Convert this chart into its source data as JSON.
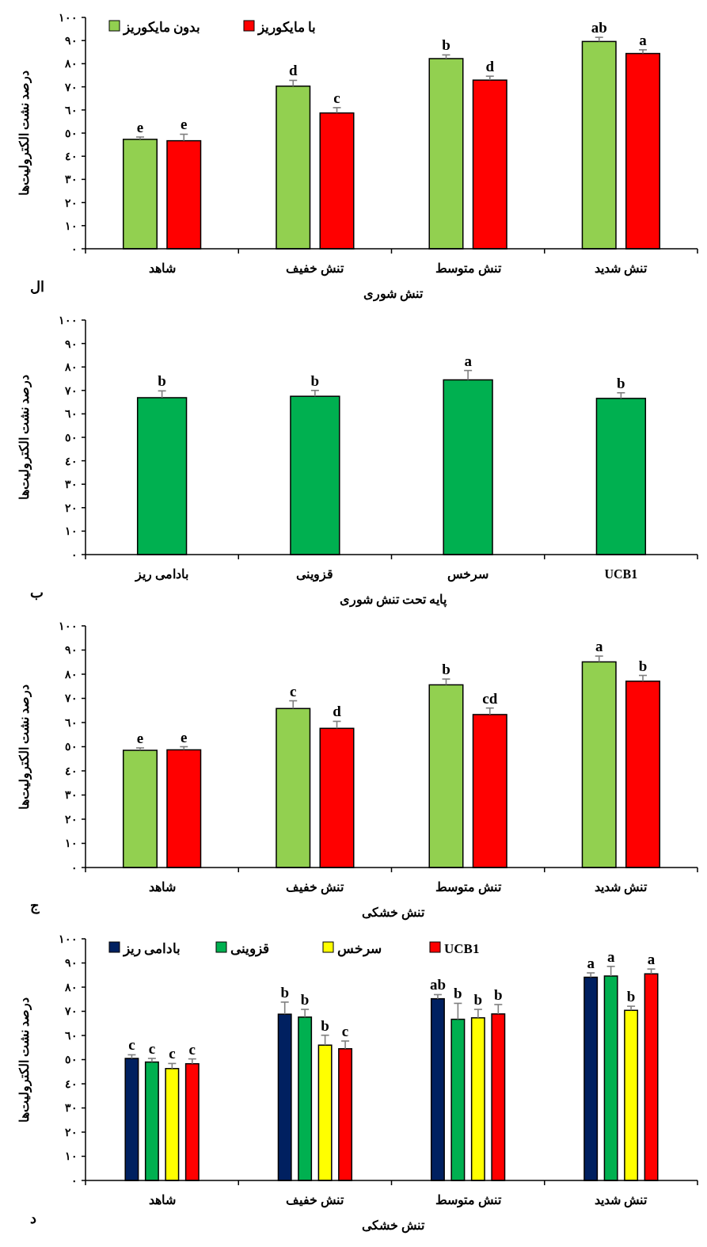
{
  "chart_data": [
    {
      "type": "bar",
      "xlabel": "تنش شوری",
      "ylabel": "درصد نشت الکترولیت‌ها",
      "annotations": [
        "ال"
      ],
      "categories": [
        "شاهد",
        "تنش خفیف",
        "تنش متوسط",
        "تنش شدید"
      ],
      "ylim": [
        0,
        100
      ],
      "yticks": [
        {
          "value": 0,
          "label": "٠"
        },
        {
          "value": 10,
          "label": "١٠"
        },
        {
          "value": 20,
          "label": "٢٠"
        },
        {
          "value": 30,
          "label": "٣٠"
        },
        {
          "value": 40,
          "label": "٤٠"
        },
        {
          "value": 50,
          "label": "٥٠"
        },
        {
          "value": 60,
          "label": "٦٠"
        },
        {
          "value": 70,
          "label": "٧٠"
        },
        {
          "value": 80,
          "label": "٨٠"
        },
        {
          "value": 90,
          "label": "٩٠"
        },
        {
          "value": 100,
          "label": "١٠٠"
        }
      ],
      "legend": "top left",
      "grid": false,
      "series": [
        {
          "name": "بدون مایکوریز",
          "color": "#92d050",
          "values": [
            47.3,
            70.3,
            82.2,
            89.6
          ],
          "errors": [
            [
              47.3,
              48.3
            ],
            [
              70.3,
              72.8
            ],
            [
              82.2,
              83.8
            ],
            [
              89.6,
              91.4
            ]
          ],
          "value_labels": [
            "e",
            "d",
            "b",
            "ab"
          ]
        },
        {
          "name": "با مایکوریز",
          "color": "#ff0000",
          "values": [
            46.7,
            58.7,
            72.9,
            84.4
          ],
          "errors": [
            [
              46.7,
              49.5
            ],
            [
              58.7,
              61.0
            ],
            [
              72.9,
              74.6
            ],
            [
              84.4,
              86.0
            ]
          ],
          "value_labels": [
            "e",
            "c",
            "d",
            "a"
          ]
        }
      ]
    },
    {
      "type": "bar",
      "xlabel": "پایه تحت تنش شوری",
      "ylabel": "درصد نشت الکترولیت‌ها",
      "annotations": [
        "ب"
      ],
      "categories": [
        "بادامی ریز",
        "قزوینی",
        "سرخس",
        "UCB1"
      ],
      "ylim": [
        0,
        100
      ],
      "yticks": [
        {
          "value": 0,
          "label": "٠"
        },
        {
          "value": 10,
          "label": "١٠"
        },
        {
          "value": 20,
          "label": "٢٠"
        },
        {
          "value": 30,
          "label": "٣٠"
        },
        {
          "value": 40,
          "label": "٤٠"
        },
        {
          "value": 50,
          "label": "٥٠"
        },
        {
          "value": 60,
          "label": "٦٠"
        },
        {
          "value": 70,
          "label": "٧٠"
        },
        {
          "value": 80,
          "label": "٨٠"
        },
        {
          "value": 90,
          "label": "٩٠"
        },
        {
          "value": 100,
          "label": "١٠٠"
        }
      ],
      "grid": false,
      "series": [
        {
          "color": "#00b050",
          "values": [
            66.9,
            67.5,
            74.5,
            66.6
          ],
          "errors": [
            [
              66.9,
              69.8
            ],
            [
              67.5,
              70.0
            ],
            [
              74.5,
              78.5
            ],
            [
              66.6,
              69.0
            ]
          ],
          "value_labels": [
            "b",
            "b",
            "a",
            "b"
          ]
        }
      ]
    },
    {
      "type": "bar",
      "xlabel": "تنش خشکی",
      "ylabel": "درصد نشت الکترولیت‌ها",
      "annotations": [
        "ج"
      ],
      "categories": [
        "شاهد",
        "تنش خفیف",
        "تنش متوسط",
        "تنش شدید"
      ],
      "ylim": [
        0,
        100
      ],
      "yticks": [
        {
          "value": 0,
          "label": "٠"
        },
        {
          "value": 10,
          "label": "١٠"
        },
        {
          "value": 20,
          "label": "٢٠"
        },
        {
          "value": 30,
          "label": "٣٠"
        },
        {
          "value": 40,
          "label": "٤٠"
        },
        {
          "value": 50,
          "label": "٥٠"
        },
        {
          "value": 60,
          "label": "٦٠"
        },
        {
          "value": 70,
          "label": "٧٠"
        },
        {
          "value": 80,
          "label": "٨٠"
        },
        {
          "value": 90,
          "label": "٩٠"
        },
        {
          "value": 100,
          "label": "١٠٠"
        }
      ],
      "grid": false,
      "series": [
        {
          "color": "#92d050",
          "values": [
            48.5,
            65.8,
            75.6,
            85.1
          ],
          "errors": [
            [
              48.5,
              49.5
            ],
            [
              65.8,
              69.0
            ],
            [
              75.6,
              78.0
            ],
            [
              85.1,
              87.5
            ]
          ],
          "value_labels": [
            "e",
            "c",
            "b",
            "a"
          ]
        },
        {
          "color": "#ff0000",
          "values": [
            48.7,
            57.6,
            63.3,
            77.1
          ],
          "errors": [
            [
              48.7,
              50.0
            ],
            [
              57.6,
              60.5
            ],
            [
              63.3,
              66.0
            ],
            [
              77.1,
              79.5
            ]
          ],
          "value_labels": [
            "e",
            "d",
            "cd",
            "b"
          ]
        }
      ]
    },
    {
      "type": "bar",
      "xlabel": "تنش خشکی",
      "ylabel": "درصد نشت الکترولیت‌ها",
      "annotations": [
        "د"
      ],
      "categories": [
        "شاهد",
        "تنش خفیف",
        "تنش متوسط",
        "تنش شدید"
      ],
      "ylim": [
        0,
        100
      ],
      "yticks": [
        {
          "value": 0,
          "label": "٠"
        },
        {
          "value": 10,
          "label": "١٠"
        },
        {
          "value": 20,
          "label": "٢٠"
        },
        {
          "value": 30,
          "label": "٣٠"
        },
        {
          "value": 40,
          "label": "٤٠"
        },
        {
          "value": 50,
          "label": "٥٠"
        },
        {
          "value": 60,
          "label": "٦٠"
        },
        {
          "value": 70,
          "label": "٧٠"
        },
        {
          "value": 80,
          "label": "٨٠"
        },
        {
          "value": 90,
          "label": "٩٠"
        },
        {
          "value": 100,
          "label": "١٠٠"
        }
      ],
      "legend": "top left",
      "grid": false,
      "series": [
        {
          "name": "بادامی ریز",
          "color": "#002060",
          "values": [
            50.5,
            68.8,
            75.2,
            84.1
          ],
          "errors": [
            [
              50.5,
              52.0
            ],
            [
              68.8,
              73.8
            ],
            [
              75.2,
              76.9
            ],
            [
              84.1,
              85.9
            ]
          ],
          "value_labels": [
            "c",
            "b",
            "ab",
            "a"
          ]
        },
        {
          "name": "قزوینی",
          "color": "#00b050",
          "values": [
            49.0,
            67.6,
            66.7,
            84.6
          ],
          "errors": [
            [
              49.0,
              50.5
            ],
            [
              67.6,
              70.8
            ],
            [
              66.7,
              73.3
            ],
            [
              84.6,
              88.6
            ]
          ],
          "value_labels": [
            "c",
            "b",
            "b",
            "a"
          ]
        },
        {
          "name": "سرخس",
          "color": "#ffff00",
          "values": [
            46.3,
            56.0,
            67.3,
            70.4
          ],
          "errors": [
            [
              46.3,
              48.4
            ],
            [
              56.0,
              60.1
            ],
            [
              67.3,
              70.8
            ],
            [
              70.4,
              72.1
            ]
          ],
          "value_labels": [
            "c",
            "b",
            "b",
            "b"
          ]
        },
        {
          "name": "UCB1",
          "color": "#ff0000",
          "values": [
            48.3,
            54.5,
            68.9,
            85.5
          ],
          "errors": [
            [
              48.3,
              50.3
            ],
            [
              54.5,
              57.7
            ],
            [
              68.9,
              72.8
            ],
            [
              85.5,
              87.5
            ]
          ],
          "value_labels": [
            "c",
            "c",
            "b",
            "a"
          ]
        }
      ]
    }
  ]
}
